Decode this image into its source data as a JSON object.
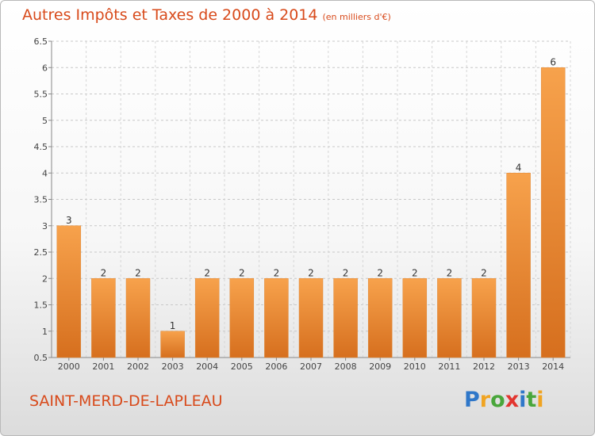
{
  "header": {
    "title": "Autres Impôts et Taxes de 2000 à 2014",
    "unit": "(en milliers d'€)"
  },
  "footer": {
    "place": "SAINT-MERD-DE-LAPLEAU",
    "logo": [
      "P",
      "r",
      "o",
      "x",
      "i",
      "t",
      "i"
    ]
  },
  "colors": {
    "title": "#d84a1b",
    "bar_light": "#f7a24c",
    "bar_dark": "#d66f1e"
  },
  "chart_data": {
    "type": "bar",
    "title": "Autres Impôts et Taxes de 2000 à 2014",
    "subtitle": "(en milliers d'€)",
    "xlabel": "",
    "ylabel": "",
    "categories": [
      "2000",
      "2001",
      "2002",
      "2003",
      "2004",
      "2005",
      "2006",
      "2007",
      "2008",
      "2009",
      "2010",
      "2011",
      "2012",
      "2013",
      "2014"
    ],
    "values": [
      3,
      2,
      2,
      1,
      2,
      2,
      2,
      2,
      2,
      2,
      2,
      2,
      2,
      4,
      6
    ],
    "data_labels": [
      "3",
      "2",
      "2",
      "1",
      "2",
      "2",
      "2",
      "2",
      "2",
      "2",
      "2",
      "2",
      "2",
      "4",
      "6"
    ],
    "ylim": [
      0.5,
      6.5
    ],
    "yticks": [
      "0.5",
      "1",
      "1.5",
      "2",
      "2.5",
      "3",
      "3.5",
      "4",
      "4.5",
      "5",
      "5.5",
      "6",
      "6.5"
    ],
    "ytick_values": [
      0.5,
      1,
      1.5,
      2,
      2.5,
      3,
      3.5,
      4,
      4.5,
      5,
      5.5,
      6,
      6.5
    ],
    "grid": "horizontal dashed",
    "legend": "none"
  }
}
